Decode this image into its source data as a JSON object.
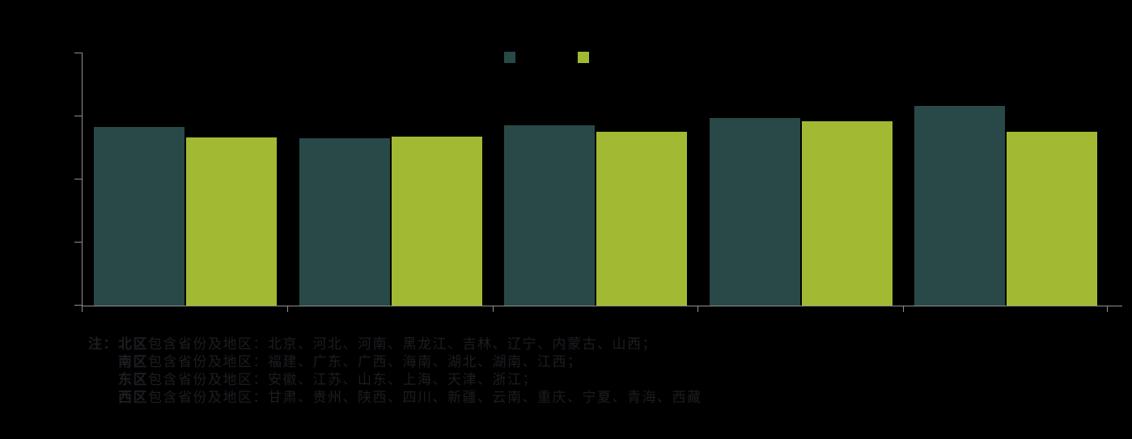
{
  "colors": {
    "background": "#000000",
    "axis": "#8f8f8f",
    "series1": "#284947",
    "series2": "#a2ba33",
    "note_text": "#1d1d22"
  },
  "chart_data": {
    "type": "bar",
    "title": "",
    "groups": 5,
    "categories": [
      "",
      "",
      "",
      "",
      ""
    ],
    "tick_labels_visible": false,
    "legend_position": "top-center",
    "legend_labels_visible": false,
    "ylim": [
      0,
      100
    ],
    "y_tick_count": 5,
    "x_boundary_tick_count": 6,
    "series": [
      {
        "name": "series-1-dark-teal",
        "color": "#284947",
        "values_pct_of_axis": [
          70.7,
          66.1,
          71.2,
          74.1,
          78.9
        ]
      },
      {
        "name": "series-2-yellow-green",
        "color": "#a2ba33",
        "values_pct_of_axis": [
          66.3,
          66.8,
          68.6,
          72.8,
          68.6
        ]
      }
    ]
  },
  "note_block": {
    "prefix": "注：",
    "lines": [
      {
        "label": "北区",
        "text": "包含省份及地区：北京、河北、河南、黑龙江、吉林、辽宁、内蒙古、山西；"
      },
      {
        "label": "南区",
        "text": "包含省份及地区：福建、广东、广西、海南、湖北、湖南、江西；"
      },
      {
        "label": "东区",
        "text": "包含省份及地区：安徽、江苏、山东、上海、天津、浙江；"
      },
      {
        "label": "西区",
        "text": "包含省份及地区：甘肃、贵州、陕西、四川、新疆、云南、重庆、宁夏、青海、西藏"
      }
    ]
  }
}
